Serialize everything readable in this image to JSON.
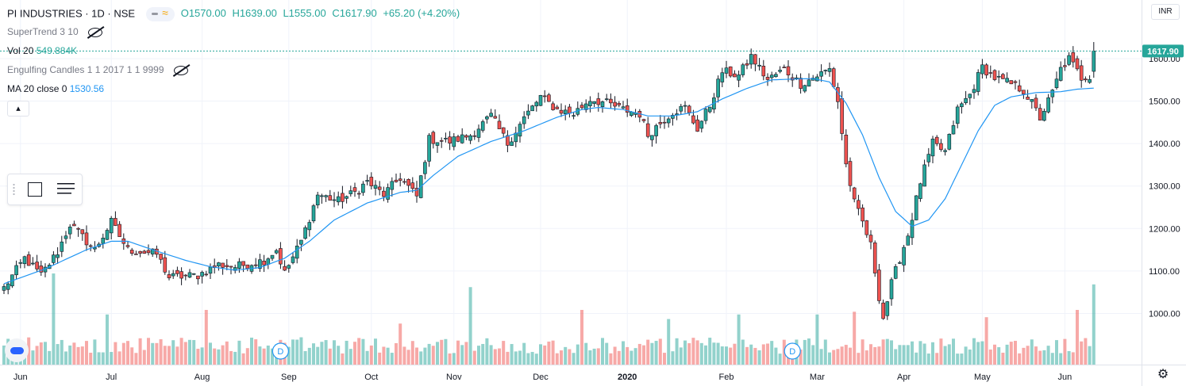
{
  "legend": {
    "symbol": "PI INDUSTRIES · 1D · NSE",
    "open": "O1570.00",
    "high": "H1639.00",
    "low": "L1555.00",
    "close": "C1617.90",
    "change": "+65.20 (+4.20%)",
    "indicators": {
      "supertrend": "SuperTrend 3 10",
      "vol_label": "Vol 20",
      "vol_value": "549.884K",
      "engulfing": "Engulfing Candles 1 1 2017 1 1 9999",
      "ma_label": "MA 20 close 0",
      "ma_value": "1530.56"
    }
  },
  "toolbar": {
    "collapse_label": "▴"
  },
  "price_scale": {
    "currency": "INR",
    "last_price_label": "1617.90"
  },
  "colors": {
    "up": "#26a69a",
    "down": "#ef5350",
    "ma": "#2196f3",
    "grid": "#f0f3fa",
    "last_price": "#26a69a"
  },
  "chart_data": {
    "type": "candlestick",
    "title": "PI INDUSTRIES · 1D · NSE",
    "y_ticks": [
      1000,
      1100,
      1200,
      1300,
      1400,
      1500,
      1600
    ],
    "y_tick_labels": [
      "1000.00",
      "1100.00",
      "1200.00",
      "1300.00",
      "1400.00",
      "1500.00",
      "1600.00"
    ],
    "ylim": [
      915,
      1710
    ],
    "x_ticks": [
      {
        "label": "Jun",
        "index": 4,
        "bold": false
      },
      {
        "label": "Jul",
        "index": 26,
        "bold": false
      },
      {
        "label": "Aug",
        "index": 48,
        "bold": false
      },
      {
        "label": "Sep",
        "index": 69,
        "bold": false
      },
      {
        "label": "Oct",
        "index": 89,
        "bold": false
      },
      {
        "label": "Nov",
        "index": 109,
        "bold": false
      },
      {
        "label": "Dec",
        "index": 130,
        "bold": false
      },
      {
        "label": "2020",
        "index": 151,
        "bold": true
      },
      {
        "label": "Feb",
        "index": 175,
        "bold": false
      },
      {
        "label": "Mar",
        "index": 197,
        "bold": false
      },
      {
        "label": "Apr",
        "index": 218,
        "bold": false
      },
      {
        "label": "May",
        "index": 237,
        "bold": false
      },
      {
        "label": "Jun",
        "index": 257,
        "bold": false
      }
    ],
    "dividend_markers": [
      {
        "label": "D",
        "index": 67
      },
      {
        "label": "D",
        "index": 191
      }
    ],
    "anchor_points": [
      [
        0,
        1060
      ],
      [
        5,
        1130
      ],
      [
        9,
        1090
      ],
      [
        13,
        1145
      ],
      [
        16,
        1210
      ],
      [
        22,
        1150
      ],
      [
        26,
        1215
      ],
      [
        30,
        1150
      ],
      [
        37,
        1140
      ],
      [
        40,
        1085
      ],
      [
        47,
        1090
      ],
      [
        52,
        1115
      ],
      [
        56,
        1110
      ],
      [
        63,
        1125
      ],
      [
        66,
        1150
      ],
      [
        68,
        1095
      ],
      [
        72,
        1170
      ],
      [
        76,
        1280
      ],
      [
        81,
        1265
      ],
      [
        85,
        1285
      ],
      [
        88,
        1310
      ],
      [
        92,
        1280
      ],
      [
        96,
        1320
      ],
      [
        100,
        1275
      ],
      [
        103,
        1410
      ],
      [
        108,
        1405
      ],
      [
        113,
        1420
      ],
      [
        118,
        1465
      ],
      [
        122,
        1400
      ],
      [
        126,
        1460
      ],
      [
        130,
        1510
      ],
      [
        134,
        1480
      ],
      [
        138,
        1470
      ],
      [
        142,
        1505
      ],
      [
        146,
        1495
      ],
      [
        150,
        1480
      ],
      [
        154,
        1470
      ],
      [
        156,
        1420
      ],
      [
        158,
        1440
      ],
      [
        162,
        1475
      ],
      [
        165,
        1485
      ],
      [
        168,
        1435
      ],
      [
        171,
        1490
      ],
      [
        174,
        1570
      ],
      [
        178,
        1560
      ],
      [
        181,
        1605
      ],
      [
        185,
        1550
      ],
      [
        189,
        1575
      ],
      [
        193,
        1540
      ],
      [
        197,
        1560
      ],
      [
        200,
        1575
      ],
      [
        202,
        1500
      ],
      [
        204,
        1350
      ],
      [
        206,
        1260
      ],
      [
        208,
        1215
      ],
      [
        210,
        1160
      ],
      [
        212,
        1040
      ],
      [
        213,
        990
      ],
      [
        215,
        1070
      ],
      [
        217,
        1130
      ],
      [
        219,
        1185
      ],
      [
        222,
        1310
      ],
      [
        225,
        1400
      ],
      [
        228,
        1380
      ],
      [
        231,
        1480
      ],
      [
        234,
        1515
      ],
      [
        237,
        1580
      ],
      [
        240,
        1555
      ],
      [
        244,
        1540
      ],
      [
        247,
        1525
      ],
      [
        249,
        1495
      ],
      [
        251,
        1460
      ],
      [
        254,
        1520
      ],
      [
        256,
        1575
      ],
      [
        258,
        1600
      ],
      [
        261,
        1555
      ],
      [
        263,
        1560
      ],
      [
        264,
        1617.9
      ]
    ],
    "ma20": [
      [
        0,
        1070
      ],
      [
        10,
        1105
      ],
      [
        20,
        1150
      ],
      [
        26,
        1170
      ],
      [
        30,
        1170
      ],
      [
        36,
        1150
      ],
      [
        44,
        1125
      ],
      [
        50,
        1110
      ],
      [
        56,
        1102
      ],
      [
        62,
        1108
      ],
      [
        68,
        1130
      ],
      [
        74,
        1170
      ],
      [
        80,
        1220
      ],
      [
        88,
        1260
      ],
      [
        96,
        1285
      ],
      [
        100,
        1290
      ],
      [
        104,
        1325
      ],
      [
        110,
        1370
      ],
      [
        118,
        1405
      ],
      [
        126,
        1430
      ],
      [
        134,
        1462
      ],
      [
        140,
        1480
      ],
      [
        144,
        1485
      ],
      [
        150,
        1480
      ],
      [
        156,
        1465
      ],
      [
        162,
        1465
      ],
      [
        168,
        1475
      ],
      [
        174,
        1505
      ],
      [
        180,
        1530
      ],
      [
        186,
        1550
      ],
      [
        192,
        1552
      ],
      [
        196,
        1553
      ],
      [
        200,
        1545
      ],
      [
        204,
        1495
      ],
      [
        208,
        1420
      ],
      [
        212,
        1320
      ],
      [
        216,
        1240
      ],
      [
        220,
        1205
      ],
      [
        224,
        1220
      ],
      [
        228,
        1270
      ],
      [
        232,
        1350
      ],
      [
        236,
        1430
      ],
      [
        240,
        1490
      ],
      [
        244,
        1510
      ],
      [
        250,
        1520
      ],
      [
        256,
        1522
      ],
      [
        260,
        1528
      ],
      [
        264,
        1530.56
      ]
    ],
    "volume_peaks": [
      [
        12,
        1.0
      ],
      [
        25,
        0.55
      ],
      [
        49,
        0.6
      ],
      [
        96,
        0.45
      ],
      [
        113,
        0.85
      ],
      [
        140,
        0.6
      ],
      [
        161,
        0.5
      ],
      [
        178,
        0.55
      ],
      [
        197,
        0.55
      ],
      [
        206,
        0.58
      ],
      [
        238,
        0.52
      ],
      [
        260,
        0.6
      ],
      [
        264,
        0.88
      ]
    ],
    "last_close": 1617.9
  }
}
